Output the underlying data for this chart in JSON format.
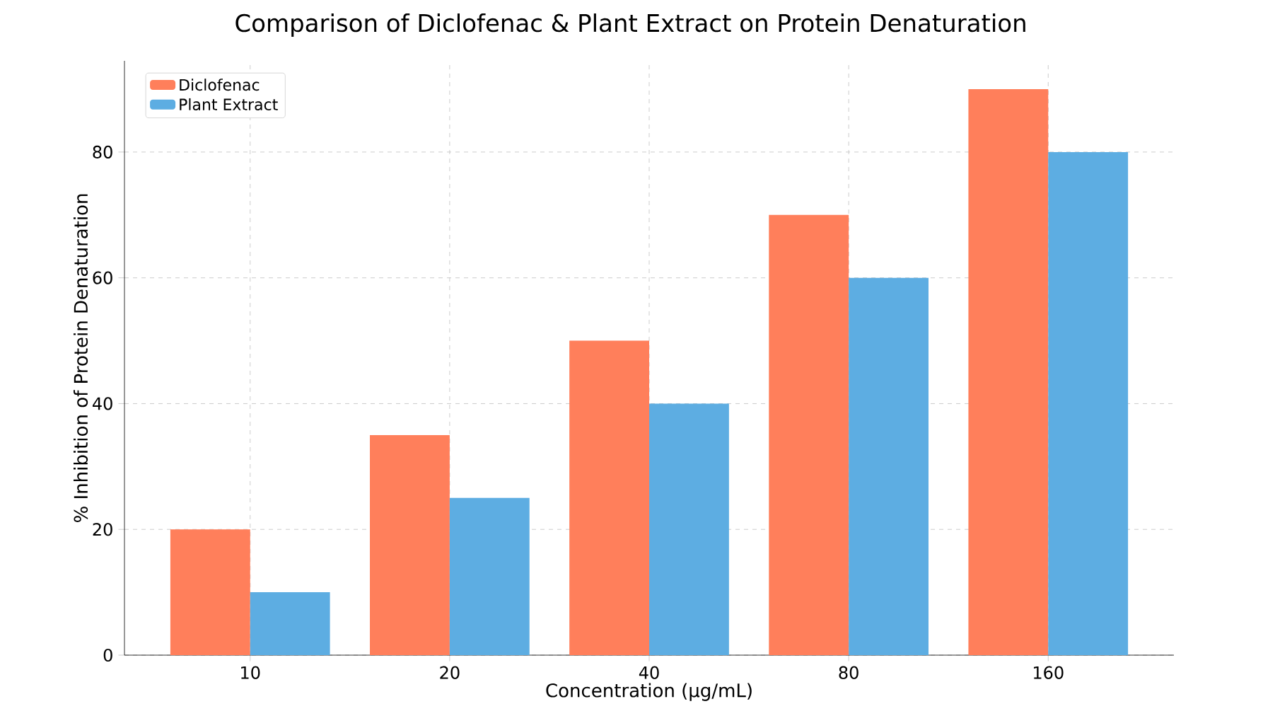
{
  "chart_data": {
    "type": "bar",
    "title": "Comparison of Diclofenac & Plant Extract on Protein Denaturation",
    "xlabel": "Concentration (µg/mL)",
    "ylabel": "% Inhibition of Protein Denaturation",
    "categories": [
      "10",
      "20",
      "40",
      "80",
      "160"
    ],
    "series": [
      {
        "name": "Diclofenac",
        "color": "#ff7f5b",
        "values": [
          20,
          35,
          50,
          70,
          90
        ]
      },
      {
        "name": "Plant Extract",
        "color": "#5dade2",
        "values": [
          10,
          25,
          40,
          60,
          80
        ]
      }
    ],
    "ylim": [
      0,
      94.5
    ],
    "yticks": [
      0,
      20,
      40,
      60,
      80
    ],
    "grid": true,
    "legend": "top left"
  }
}
